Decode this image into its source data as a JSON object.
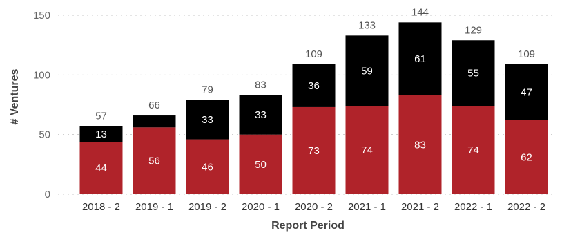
{
  "chart_data": {
    "type": "bar",
    "stacked": true,
    "categories": [
      "2018 - 2",
      "2019 - 1",
      "2019 - 2",
      "2020 - 1",
      "2020 - 2",
      "2021 - 1",
      "2021 - 2",
      "2022 - 1",
      "2022 - 2"
    ],
    "series": [
      {
        "color": "#b0232a",
        "values": [
          44,
          56,
          46,
          50,
          73,
          74,
          83,
          74,
          62
        ],
        "labels": [
          "44",
          "56",
          "46",
          "50",
          "73",
          "74",
          "83",
          "74",
          "62"
        ]
      },
      {
        "color": "#000000",
        "values": [
          13,
          10,
          33,
          33,
          36,
          59,
          61,
          55,
          47
        ],
        "labels": [
          "13",
          "",
          "33",
          "33",
          "36",
          "59",
          "61",
          "55",
          "47"
        ]
      }
    ],
    "totals": [
      57,
      66,
      79,
      83,
      109,
      133,
      144,
      129,
      109
    ],
    "total_labels": [
      "57",
      "66",
      "79",
      "83",
      "109",
      "133",
      "144",
      "129",
      "109"
    ],
    "title": "",
    "xlabel": "Report Period",
    "ylabel": "# Ventures",
    "ylim": [
      0,
      150
    ],
    "yticks": [
      0,
      50,
      100,
      150
    ],
    "ytick_labels": [
      "0",
      "50",
      "100",
      "150"
    ],
    "grid": true,
    "legend": "none"
  }
}
